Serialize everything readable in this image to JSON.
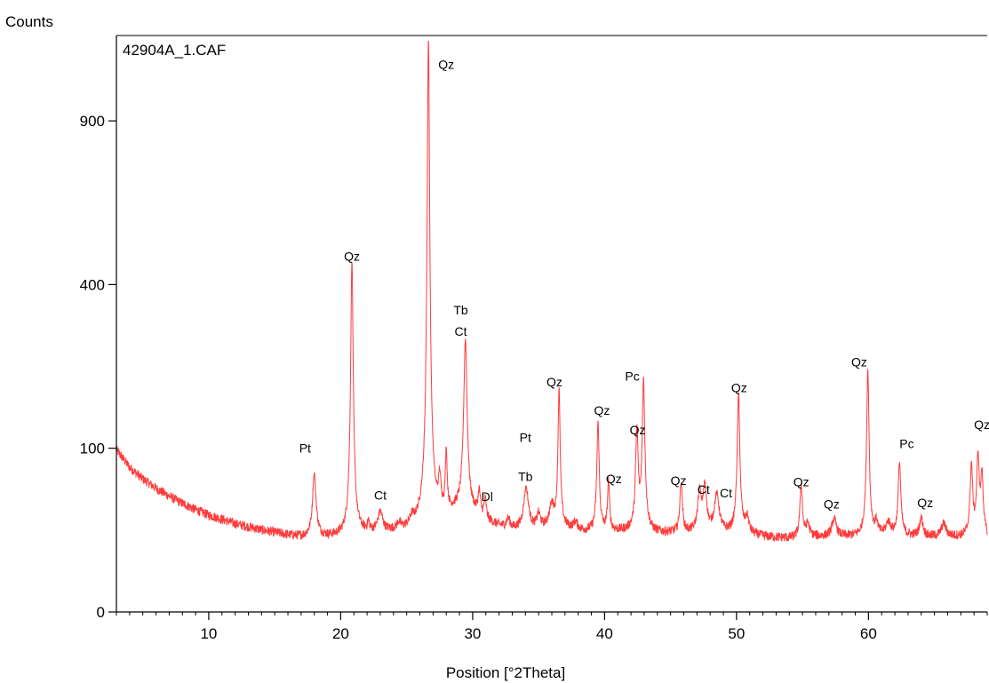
{
  "chart_data": {
    "type": "line",
    "sample_name": "42904A_1.CAF",
    "xlabel": "Position [°2Theta]",
    "ylabel": "Counts",
    "xlim": [
      3,
      69
    ],
    "ylim": [
      0,
      1240
    ],
    "y_scale": "sqrt",
    "x_ticks": [
      10,
      20,
      30,
      40,
      50,
      60
    ],
    "y_ticks": [
      0,
      100,
      400,
      900
    ],
    "grid": false,
    "line_color": "#ff3b3b",
    "background": {
      "points": [
        [
          3,
          98
        ],
        [
          4,
          78
        ],
        [
          5,
          66
        ],
        [
          6,
          57
        ],
        [
          7,
          50
        ],
        [
          8,
          44
        ],
        [
          9,
          39
        ],
        [
          10,
          35
        ],
        [
          12,
          29
        ],
        [
          14,
          25
        ],
        [
          16,
          22
        ],
        [
          17,
          21
        ],
        [
          18,
          21
        ],
        [
          20,
          21
        ],
        [
          21,
          22
        ],
        [
          22,
          23
        ],
        [
          24,
          24
        ],
        [
          25,
          25
        ],
        [
          26,
          27
        ],
        [
          27,
          30
        ],
        [
          28,
          35
        ],
        [
          29,
          38
        ],
        [
          30,
          35
        ],
        [
          31,
          30
        ],
        [
          32,
          27
        ],
        [
          33,
          25
        ],
        [
          34,
          25
        ],
        [
          35,
          25
        ],
        [
          36,
          27
        ],
        [
          37,
          26
        ],
        [
          38,
          24
        ],
        [
          40,
          24
        ],
        [
          42,
          24
        ],
        [
          44,
          23
        ],
        [
          46,
          23
        ],
        [
          48,
          23
        ],
        [
          50,
          23
        ],
        [
          52,
          21
        ],
        [
          54,
          20
        ],
        [
          56,
          21
        ],
        [
          58,
          21
        ],
        [
          60,
          21
        ],
        [
          62,
          22
        ],
        [
          64,
          21
        ],
        [
          66,
          21
        ],
        [
          67,
          21
        ],
        [
          68,
          21
        ],
        [
          69,
          20
        ]
      ],
      "noise": 3
    },
    "peaks": [
      {
        "pos": 18.0,
        "height": 50,
        "width": 0.14
      },
      {
        "pos": 20.85,
        "height": 440,
        "width": 0.09
      },
      {
        "pos": 22.1,
        "height": 6,
        "width": 0.07
      },
      {
        "pos": 23.0,
        "height": 13,
        "width": 0.2
      },
      {
        "pos": 24.4,
        "height": 4,
        "width": 0.15
      },
      {
        "pos": 25.4,
        "height": 5,
        "width": 0.15
      },
      {
        "pos": 26.65,
        "height": 1200,
        "width": 0.09
      },
      {
        "pos": 27.5,
        "height": 30,
        "width": 0.1
      },
      {
        "pos": 28.0,
        "height": 60,
        "width": 0.07
      },
      {
        "pos": 29.45,
        "height": 240,
        "width": 0.13
      },
      {
        "pos": 30.5,
        "height": 20,
        "width": 0.1
      },
      {
        "pos": 30.95,
        "height": 15,
        "width": 0.1
      },
      {
        "pos": 32.7,
        "height": 6,
        "width": 0.15
      },
      {
        "pos": 34.05,
        "height": 32,
        "width": 0.2
      },
      {
        "pos": 35.0,
        "height": 10,
        "width": 0.15
      },
      {
        "pos": 36.0,
        "height": 15,
        "width": 0.2
      },
      {
        "pos": 36.55,
        "height": 160,
        "width": 0.08
      },
      {
        "pos": 37.8,
        "height": 5,
        "width": 0.2
      },
      {
        "pos": 39.5,
        "height": 110,
        "width": 0.09
      },
      {
        "pos": 40.3,
        "height": 40,
        "width": 0.08
      },
      {
        "pos": 42.45,
        "height": 100,
        "width": 0.1
      },
      {
        "pos": 42.95,
        "height": 180,
        "width": 0.1
      },
      {
        "pos": 45.8,
        "height": 40,
        "width": 0.1
      },
      {
        "pos": 47.2,
        "height": 30,
        "width": 0.15
      },
      {
        "pos": 47.6,
        "height": 35,
        "width": 0.15
      },
      {
        "pos": 48.5,
        "height": 28,
        "width": 0.2
      },
      {
        "pos": 50.15,
        "height": 155,
        "width": 0.1
      },
      {
        "pos": 50.8,
        "height": 10,
        "width": 0.15
      },
      {
        "pos": 54.9,
        "height": 40,
        "width": 0.1
      },
      {
        "pos": 55.4,
        "height": 8,
        "width": 0.15
      },
      {
        "pos": 57.4,
        "height": 11,
        "width": 0.2
      },
      {
        "pos": 59.95,
        "height": 200,
        "width": 0.09
      },
      {
        "pos": 60.6,
        "height": 8,
        "width": 0.12
      },
      {
        "pos": 61.5,
        "height": 8,
        "width": 0.2
      },
      {
        "pos": 62.35,
        "height": 62,
        "width": 0.1
      },
      {
        "pos": 64.0,
        "height": 12,
        "width": 0.15
      },
      {
        "pos": 65.7,
        "height": 8,
        "width": 0.2
      },
      {
        "pos": 67.8,
        "height": 60,
        "width": 0.1
      },
      {
        "pos": 68.3,
        "height": 70,
        "width": 0.1
      },
      {
        "pos": 68.6,
        "height": 50,
        "width": 0.1
      }
    ],
    "peak_labels": [
      {
        "text": "Qz",
        "x": 20.85,
        "y": 460
      },
      {
        "text": "Qz",
        "x": 28.0,
        "y": 1100
      },
      {
        "text": "Pt",
        "x": 17.3,
        "y": 95
      },
      {
        "text": "Ct",
        "x": 23.0,
        "y": 47
      },
      {
        "text": "Tb",
        "x": 29.1,
        "y": 330
      },
      {
        "text": "Ct",
        "x": 29.1,
        "y": 285
      },
      {
        "text": "Dl",
        "x": 31.1,
        "y": 46
      },
      {
        "text": "Pt",
        "x": 34.0,
        "y": 108
      },
      {
        "text": "Tb",
        "x": 34.0,
        "y": 64
      },
      {
        "text": "Qz",
        "x": 36.2,
        "y": 190
      },
      {
        "text": "Qz",
        "x": 39.8,
        "y": 145
      },
      {
        "text": "Qz",
        "x": 40.7,
        "y": 62
      },
      {
        "text": "Pc",
        "x": 42.1,
        "y": 200
      },
      {
        "text": "Qz",
        "x": 42.5,
        "y": 118
      },
      {
        "text": "Qz",
        "x": 45.6,
        "y": 60
      },
      {
        "text": "Ct",
        "x": 47.5,
        "y": 52
      },
      {
        "text": "Ct",
        "x": 49.2,
        "y": 49
      },
      {
        "text": "Qz",
        "x": 50.2,
        "y": 180
      },
      {
        "text": "Qz",
        "x": 54.9,
        "y": 59
      },
      {
        "text": "Qz",
        "x": 57.2,
        "y": 40
      },
      {
        "text": "Qz",
        "x": 59.3,
        "y": 225
      },
      {
        "text": "Pc",
        "x": 62.9,
        "y": 100
      },
      {
        "text": "Qz",
        "x": 64.3,
        "y": 41
      },
      {
        "text": "Qz",
        "x": 68.6,
        "y": 125
      }
    ]
  }
}
